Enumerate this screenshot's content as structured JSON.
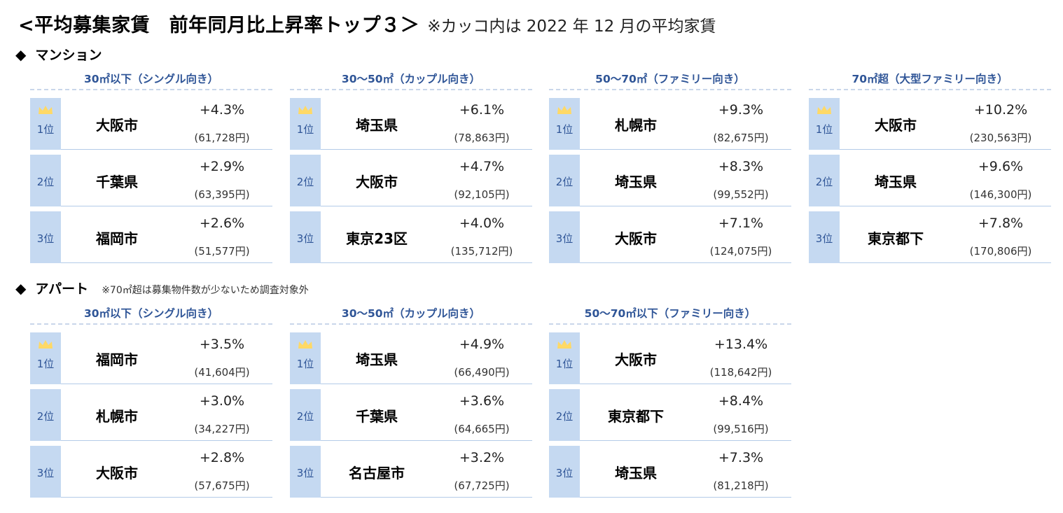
{
  "title": {
    "main": "<平均募集家賃　前年同月比上昇率トップ３＞",
    "note": "※カッコ内は 2022 年 12 月の平均家賃"
  },
  "mansion": {
    "label": "マンション",
    "panels": [
      {
        "header": "30㎡以下（シングル向き）",
        "rows": [
          {
            "rank": "1位",
            "city": "大阪市",
            "pct": "+4.3%",
            "rent": "(61,728円)"
          },
          {
            "rank": "2位",
            "city": "千葉県",
            "pct": "+2.9%",
            "rent": "(63,395円)"
          },
          {
            "rank": "3位",
            "city": "福岡市",
            "pct": "+2.6%",
            "rent": "(51,577円)"
          }
        ]
      },
      {
        "header": "30～50㎡（カップル向き）",
        "rows": [
          {
            "rank": "1位",
            "city": "埼玉県",
            "pct": "+6.1%",
            "rent": "(78,863円)"
          },
          {
            "rank": "2位",
            "city": "大阪市",
            "pct": "+4.7%",
            "rent": "(92,105円)"
          },
          {
            "rank": "3位",
            "city": "東京23区",
            "pct": "+4.0%",
            "rent": "(135,712円)"
          }
        ]
      },
      {
        "header": "50～70㎡（ファミリー向き）",
        "rows": [
          {
            "rank": "1位",
            "city": "札幌市",
            "pct": "+9.3%",
            "rent": "(82,675円)"
          },
          {
            "rank": "2位",
            "city": "埼玉県",
            "pct": "+8.3%",
            "rent": "(99,552円)"
          },
          {
            "rank": "3位",
            "city": "大阪市",
            "pct": "+7.1%",
            "rent": "(124,075円)"
          }
        ]
      },
      {
        "header": "70㎡超（大型ファミリー向き）",
        "rows": [
          {
            "rank": "1位",
            "city": "大阪市",
            "pct": "+10.2%",
            "rent": "(230,563円)"
          },
          {
            "rank": "2位",
            "city": "埼玉県",
            "pct": "+9.6%",
            "rent": "(146,300円)"
          },
          {
            "rank": "3位",
            "city": "東京都下",
            "pct": "+7.8%",
            "rent": "(170,806円)"
          }
        ]
      }
    ]
  },
  "apart": {
    "label": "アパート",
    "note": "※70㎡超は募集物件数が少ないため調査対象外",
    "panels": [
      {
        "header": "30㎡以下（シングル向き）",
        "rows": [
          {
            "rank": "1位",
            "city": "福岡市",
            "pct": "+3.5%",
            "rent": "(41,604円)"
          },
          {
            "rank": "2位",
            "city": "札幌市",
            "pct": "+3.0%",
            "rent": "(34,227円)"
          },
          {
            "rank": "3位",
            "city": "大阪市",
            "pct": "+2.8%",
            "rent": "(57,675円)"
          }
        ]
      },
      {
        "header": "30～50㎡（カップル向き）",
        "rows": [
          {
            "rank": "1位",
            "city": "埼玉県",
            "pct": "+4.9%",
            "rent": "(66,490円)"
          },
          {
            "rank": "2位",
            "city": "千葉県",
            "pct": "+3.6%",
            "rent": "(64,665円)"
          },
          {
            "rank": "3位",
            "city": "名古屋市",
            "pct": "+3.2%",
            "rent": "(67,725円)"
          }
        ]
      },
      {
        "header": "50～70㎡以下（ファミリー向き）",
        "rows": [
          {
            "rank": "1位",
            "city": "大阪市",
            "pct": "+13.4%",
            "rent": "(118,642円)"
          },
          {
            "rank": "2位",
            "city": "東京都下",
            "pct": "+8.4%",
            "rent": "(99,516円)"
          },
          {
            "rank": "3位",
            "city": "埼玉県",
            "pct": "+7.3%",
            "rent": "(81,218円)"
          }
        ]
      }
    ]
  },
  "colors": {
    "header_text": "#2f5597",
    "rank_bg": "#c5d9f1",
    "crown": "#ffd966",
    "divider": "#b3cbe8"
  },
  "icons": {
    "top_rank": "crown-icon",
    "section_bullet": "diamond-icon"
  }
}
